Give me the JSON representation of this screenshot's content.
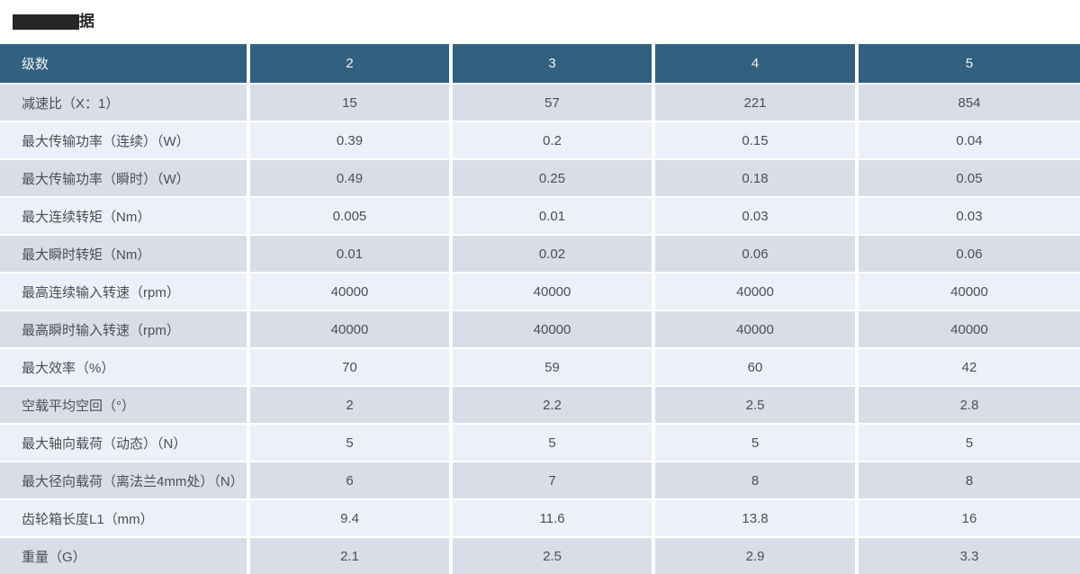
{
  "title": {
    "visible_char": "据"
  },
  "table": {
    "row_header_label": "级数",
    "column_headers": [
      "2",
      "3",
      "4",
      "5"
    ],
    "rows": [
      {
        "label": "减速比（X：1）",
        "values": [
          "15",
          "57",
          "221",
          "854"
        ]
      },
      {
        "label": "最大传输功率（连续）（W）",
        "values": [
          "0.39",
          "0.2",
          "0.15",
          "0.04"
        ]
      },
      {
        "label": "最大传输功率（瞬时）（W）",
        "values": [
          "0.49",
          "0.25",
          "0.18",
          "0.05"
        ]
      },
      {
        "label": "最大连续转矩（Nm）",
        "values": [
          "0.005",
          "0.01",
          "0.03",
          "0.03"
        ]
      },
      {
        "label": "最大瞬时转矩（Nm）",
        "values": [
          "0.01",
          "0.02",
          "0.06",
          "0.06"
        ]
      },
      {
        "label": "最高连续输入转速（rpm）",
        "values": [
          "40000",
          "40000",
          "40000",
          "40000"
        ]
      },
      {
        "label": "最高瞬时输入转速（rpm）",
        "values": [
          "40000",
          "40000",
          "40000",
          "40000"
        ]
      },
      {
        "label": "最大效率（%）",
        "values": [
          "70",
          "59",
          "60",
          "42"
        ]
      },
      {
        "label": "空载平均空回（°）",
        "values": [
          "2",
          "2.2",
          "2.5",
          "2.8"
        ]
      },
      {
        "label": "最大轴向载荷（动态）（N）",
        "values": [
          "5",
          "5",
          "5",
          "5"
        ]
      },
      {
        "label": "最大径向载荷（离法兰4mm处）（N）",
        "values": [
          "6",
          "7",
          "8",
          "8"
        ]
      },
      {
        "label": "齿轮箱长度L1（mm）",
        "values": [
          "9.4",
          "11.6",
          "13.8",
          "16"
        ]
      },
      {
        "label": "重量（G）",
        "values": [
          "2.1",
          "2.5",
          "2.9",
          "3.3"
        ]
      }
    ]
  },
  "colors": {
    "header_bg": "#32607f",
    "header_text": "#f2f5f7",
    "row_dark_bg": "#d8dde7",
    "row_light_bg": "#edf0f8",
    "cell_text": "#4a4f58",
    "redaction": "#262626"
  }
}
